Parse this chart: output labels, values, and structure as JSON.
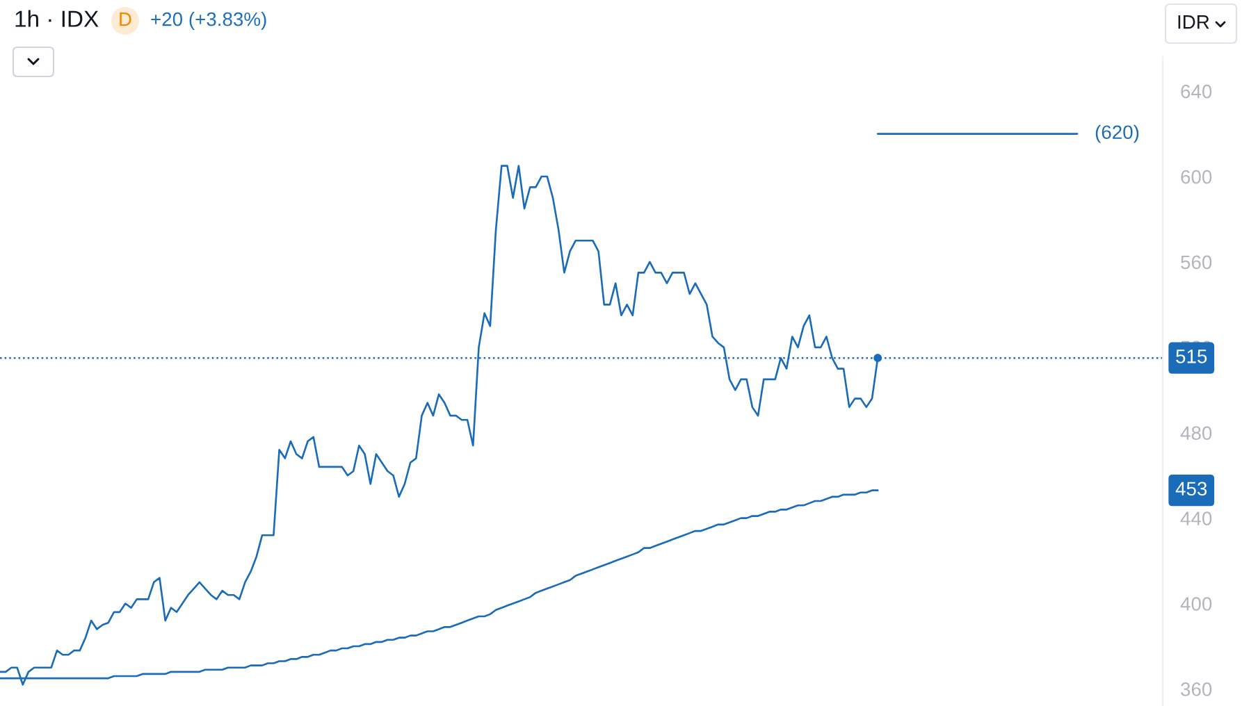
{
  "chart_data": {
    "type": "line",
    "title": "1h · IDX",
    "subtitle": "+20 (+3.83%)",
    "annotations": [
      "D",
      "IDR",
      "453"
    ],
    "categories": [
      null,
      null,
      null,
      null,
      null,
      null,
      null,
      null,
      null,
      null,
      null,
      null,
      null,
      null,
      null,
      null,
      null,
      null,
      null,
      null,
      null,
      null,
      null,
      null,
      null,
      null,
      null,
      null,
      null,
      null,
      null,
      null,
      null,
      null,
      null,
      null,
      null,
      null,
      null,
      null,
      null,
      null,
      null,
      null,
      null,
      null,
      null,
      null,
      null,
      null,
      null,
      null,
      null,
      null,
      null,
      null,
      null,
      null,
      null,
      null,
      null,
      null,
      null,
      null,
      null,
      null,
      null,
      null,
      null,
      null,
      null,
      null,
      null,
      null,
      null,
      null,
      null,
      null,
      null,
      null,
      null,
      null,
      null,
      null,
      null,
      null,
      null,
      null,
      null,
      null,
      null,
      null,
      null,
      null,
      null,
      null,
      null,
      null,
      null,
      null,
      null,
      null,
      null,
      null,
      null,
      null,
      null,
      null,
      null,
      null,
      null,
      null,
      null,
      null,
      null,
      null,
      null,
      null,
      null,
      null,
      null,
      null,
      null,
      null,
      null,
      null,
      null,
      null,
      null,
      null,
      null,
      null,
      null,
      null,
      null,
      null,
      null,
      null,
      null,
      null,
      null,
      null,
      null,
      null,
      null,
      null,
      null,
      null,
      null,
      null,
      null,
      null,
      null,
      null,
      null,
      null,
      null,
      null,
      null,
      null,
      null,
      null,
      null,
      null,
      null,
      null,
      null,
      null,
      null,
      null,
      null,
      null,
      null,
      null,
      null,
      null,
      null,
      null,
      null,
      null,
      null,
      null,
      null,
      null,
      null,
      null,
      null,
      null,
      null,
      null,
      null,
      null,
      null,
      null,
      null,
      null,
      null,
      null,
      null,
      null,
      null,
      null,
      null,
      null,
      null
    ],
    "series": [
      {
        "color": "#1b6cb8",
        "values": [
          365,
          365,
          365,
          365,
          365,
          365,
          365,
          365,
          365,
          365,
          365,
          365,
          365,
          365,
          365,
          365,
          365,
          365,
          365,
          365,
          366,
          366,
          366,
          366,
          366,
          367,
          367,
          367,
          367,
          367,
          368,
          368,
          368,
          368,
          368,
          368,
          369,
          369,
          369,
          369,
          370,
          370,
          370,
          370,
          371,
          371,
          371,
          372,
          372,
          373,
          373,
          374,
          374,
          375,
          375,
          376,
          376,
          377,
          378,
          378,
          379,
          379,
          380,
          380,
          381,
          381,
          382,
          382,
          383,
          383,
          384,
          384,
          385,
          385,
          386,
          387,
          387,
          388,
          389,
          389,
          390,
          391,
          392,
          393,
          394,
          394,
          395,
          397,
          398,
          399,
          400,
          401,
          402,
          403,
          405,
          406,
          407,
          408,
          409,
          410,
          411,
          413,
          414,
          415,
          416,
          417,
          418,
          419,
          420,
          421,
          422,
          423,
          424,
          426,
          426,
          427,
          428,
          429,
          430,
          431,
          432,
          433,
          434,
          434,
          435,
          436,
          437,
          437,
          438,
          439,
          440,
          440,
          441,
          441,
          442,
          443,
          443,
          444,
          444,
          445,
          446,
          446,
          447,
          448,
          448,
          449,
          450,
          450,
          451,
          451,
          451,
          452,
          452,
          453,
          453,
          null,
          null,
          null,
          null,
          null,
          null,
          null,
          null,
          null,
          null,
          null,
          null,
          null,
          null,
          null,
          null,
          null,
          null,
          null,
          null,
          null,
          null,
          null,
          null,
          null,
          null,
          null,
          null,
          null,
          null,
          null,
          null,
          null,
          null,
          null,
          null,
          null,
          null,
          null,
          null,
          null,
          null,
          null,
          null,
          null,
          null,
          null,
          null,
          null,
          null
        ]
      },
      {
        "color": "#1b6cb8",
        "values": [
          368,
          368,
          370,
          370,
          362,
          368,
          370,
          370,
          370,
          370,
          378,
          376,
          376,
          378,
          378,
          384,
          392,
          388,
          390,
          391,
          396,
          396,
          400,
          398,
          402,
          402,
          402,
          410,
          412,
          392,
          398,
          396,
          400,
          404,
          407,
          410,
          407,
          404,
          402,
          406,
          404,
          404,
          402,
          410,
          415,
          422,
          432,
          432,
          432,
          472,
          468,
          476,
          470,
          468,
          476,
          478,
          464,
          464,
          464,
          464,
          464,
          460,
          462,
          474,
          470,
          456,
          470,
          466,
          462,
          460,
          450,
          456,
          466,
          468,
          488,
          494,
          488,
          498,
          494,
          488,
          488,
          486,
          486,
          474,
          520,
          536,
          530,
          575,
          605,
          605,
          590,
          605,
          585,
          595,
          595,
          600,
          600,
          590,
          575,
          555,
          565,
          570,
          570,
          570,
          570,
          565,
          540,
          540,
          550,
          535,
          540,
          535,
          555,
          555,
          560,
          555,
          555,
          550,
          555,
          555,
          555,
          545,
          550,
          545,
          540,
          525,
          522,
          520,
          505,
          500,
          505,
          505,
          492,
          488,
          505,
          505,
          505,
          515,
          510,
          525,
          520,
          530,
          535,
          520,
          520,
          525,
          515,
          510,
          510,
          492,
          496,
          496,
          492,
          496,
          515,
          null,
          null,
          null,
          null,
          null,
          null,
          null,
          null,
          null,
          null,
          null,
          null,
          null,
          null,
          null,
          null,
          null,
          null,
          null,
          null,
          null,
          null,
          null,
          null,
          null,
          null,
          null,
          null,
          null,
          null,
          null,
          null,
          null,
          null,
          null,
          null,
          null,
          null,
          null,
          null,
          null,
          null,
          null,
          null,
          null,
          null,
          null,
          null,
          null,
          null
        ]
      },
      {
        "type": "scatter",
        "color": "#1b6cb8",
        "values": [
          null,
          null,
          null,
          null,
          null,
          null,
          null,
          null,
          null,
          null,
          null,
          null,
          null,
          null,
          null,
          null,
          null,
          null,
          null,
          null,
          null,
          null,
          null,
          null,
          null,
          null,
          null,
          null,
          null,
          null,
          null,
          null,
          null,
          null,
          null,
          null,
          null,
          null,
          null,
          null,
          null,
          null,
          null,
          null,
          null,
          null,
          null,
          null,
          null,
          null,
          null,
          null,
          null,
          null,
          null,
          null,
          null,
          null,
          null,
          null,
          null,
          null,
          null,
          null,
          null,
          null,
          null,
          null,
          null,
          null,
          null,
          null,
          null,
          null,
          null,
          null,
          null,
          null,
          null,
          null,
          null,
          null,
          null,
          null,
          null,
          null,
          null,
          null,
          null,
          null,
          null,
          null,
          null,
          null,
          null,
          null,
          null,
          null,
          null,
          null,
          null,
          null,
          null,
          null,
          null,
          null,
          null,
          null,
          null,
          null,
          null,
          null,
          null,
          null,
          null,
          null,
          null,
          null,
          null,
          null,
          null,
          null,
          null,
          null,
          null,
          null,
          null,
          null,
          null,
          null,
          null,
          null,
          null,
          null,
          null,
          null,
          null,
          null,
          null,
          null,
          null,
          null,
          null,
          null,
          null,
          null,
          null,
          null,
          null,
          null,
          null,
          null,
          null,
          null,
          515,
          null,
          null,
          null,
          null,
          null,
          null,
          null,
          null,
          null,
          null,
          null,
          null,
          null,
          null,
          null,
          null,
          null,
          null,
          null,
          null,
          null,
          null,
          null,
          null,
          null,
          null,
          null,
          null,
          null,
          null,
          null,
          null,
          null,
          null,
          null,
          null,
          null,
          null,
          null,
          null,
          null,
          null,
          null,
          null,
          null,
          null,
          null,
          null,
          null,
          null
        ]
      },
      {
        "name": "(620)",
        "color": "#1b6cb8",
        "values": [
          null,
          null,
          null,
          null,
          null,
          null,
          null,
          null,
          null,
          null,
          null,
          null,
          null,
          null,
          null,
          null,
          null,
          null,
          null,
          null,
          null,
          null,
          null,
          null,
          null,
          null,
          null,
          null,
          null,
          null,
          null,
          null,
          null,
          null,
          null,
          null,
          null,
          null,
          null,
          null,
          null,
          null,
          null,
          null,
          null,
          null,
          null,
          null,
          null,
          null,
          null,
          null,
          null,
          null,
          null,
          null,
          null,
          null,
          null,
          null,
          null,
          null,
          null,
          null,
          null,
          null,
          null,
          null,
          null,
          null,
          null,
          null,
          null,
          null,
          null,
          null,
          null,
          null,
          null,
          null,
          null,
          null,
          null,
          null,
          null,
          null,
          null,
          null,
          null,
          null,
          null,
          null,
          null,
          null,
          null,
          null,
          null,
          null,
          null,
          null,
          null,
          null,
          null,
          null,
          null,
          null,
          null,
          null,
          null,
          null,
          null,
          null,
          null,
          null,
          null,
          null,
          null,
          null,
          null,
          null,
          null,
          null,
          null,
          null,
          null,
          null,
          null,
          null,
          null,
          null,
          null,
          null,
          null,
          null,
          null,
          null,
          null,
          null,
          null,
          null,
          null,
          null,
          null,
          null,
          null,
          null,
          null,
          null,
          null,
          null,
          null,
          null,
          null,
          null,
          620,
          620,
          620,
          620,
          620,
          620,
          620,
          620,
          620,
          620,
          620,
          620,
          620,
          620,
          620,
          620,
          620,
          620,
          620,
          620,
          620,
          620,
          620,
          620,
          620,
          620,
          620,
          620,
          620,
          620,
          620,
          620,
          620,
          620,
          620,
          620,
          null,
          null,
          null,
          null,
          null,
          null,
          null,
          null,
          null,
          null,
          null,
          null,
          null,
          null,
          null
        ]
      }
    ],
    "ylim": [
      352,
      656
    ],
    "yticks": [
      360,
      400,
      440,
      480,
      520,
      560,
      600,
      640
    ],
    "tick_labels": "y",
    "ref_lines": [
      {
        "axis": "y",
        "value": 515,
        "label": "515",
        "color": "#1b6cb8",
        "line_style": "dotted"
      }
    ]
  }
}
